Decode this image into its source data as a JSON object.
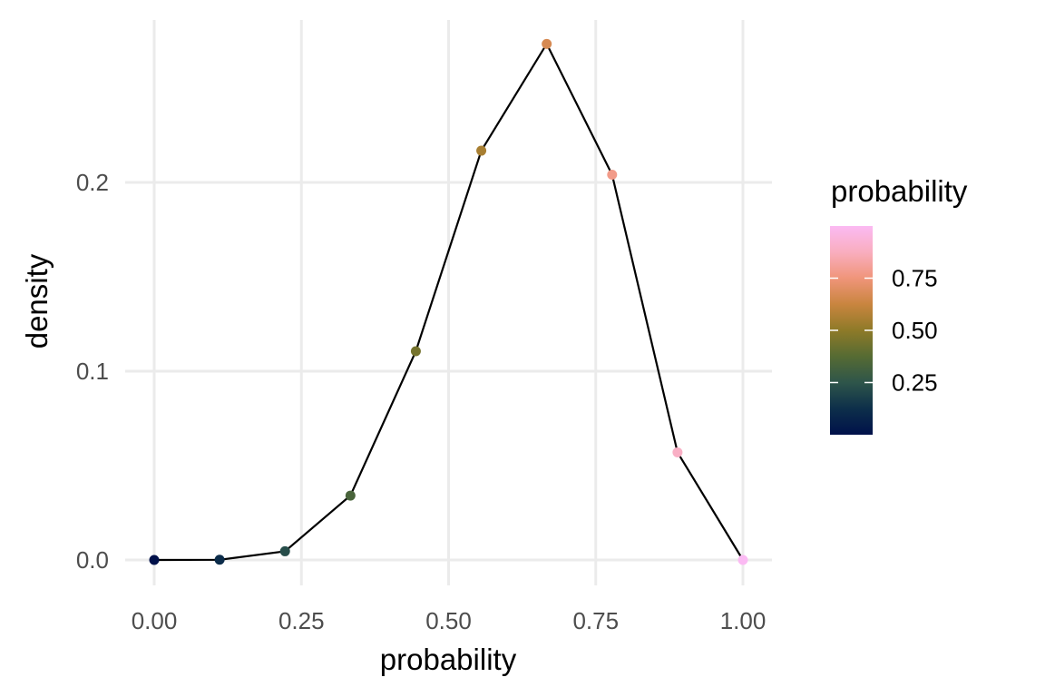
{
  "chart_data": {
    "type": "line",
    "title": "",
    "xlabel": "probability",
    "ylabel": "density",
    "xlim": [
      0,
      1
    ],
    "ylim": [
      0,
      0.27
    ],
    "x_ticks": [
      0,
      0.25,
      0.5,
      0.75,
      1
    ],
    "x_tick_labels": [
      "0.00",
      "0.25",
      "0.50",
      "0.75",
      "1.00"
    ],
    "y_ticks": [
      0,
      0.1,
      0.2
    ],
    "y_tick_labels": [
      "0.0",
      "0.1",
      "0.2"
    ],
    "grid": true,
    "series": [
      {
        "x": [
          0,
          0.1111,
          0.2222,
          0.3333,
          0.4444,
          0.5556,
          0.6667,
          0.7778,
          0.8889,
          1.0
        ],
        "y": [
          0.0,
          0.0001,
          0.0046,
          0.0341,
          0.1106,
          0.2168,
          0.2734,
          0.2041,
          0.057,
          0.0
        ]
      }
    ],
    "legend": {
      "title": "probability",
      "placement": "right",
      "type": "colorbar",
      "range": [
        0,
        1
      ],
      "ticks": [
        0.25,
        0.5,
        0.75
      ],
      "tick_labels": [
        "0.25",
        "0.50",
        "0.75"
      ],
      "colors": [
        "#00114a",
        "#0d2f4a",
        "#2e554a",
        "#566b33",
        "#8e7a28",
        "#c9853f",
        "#f0957a",
        "#f9aebf",
        "#fbbaf3"
      ]
    }
  }
}
